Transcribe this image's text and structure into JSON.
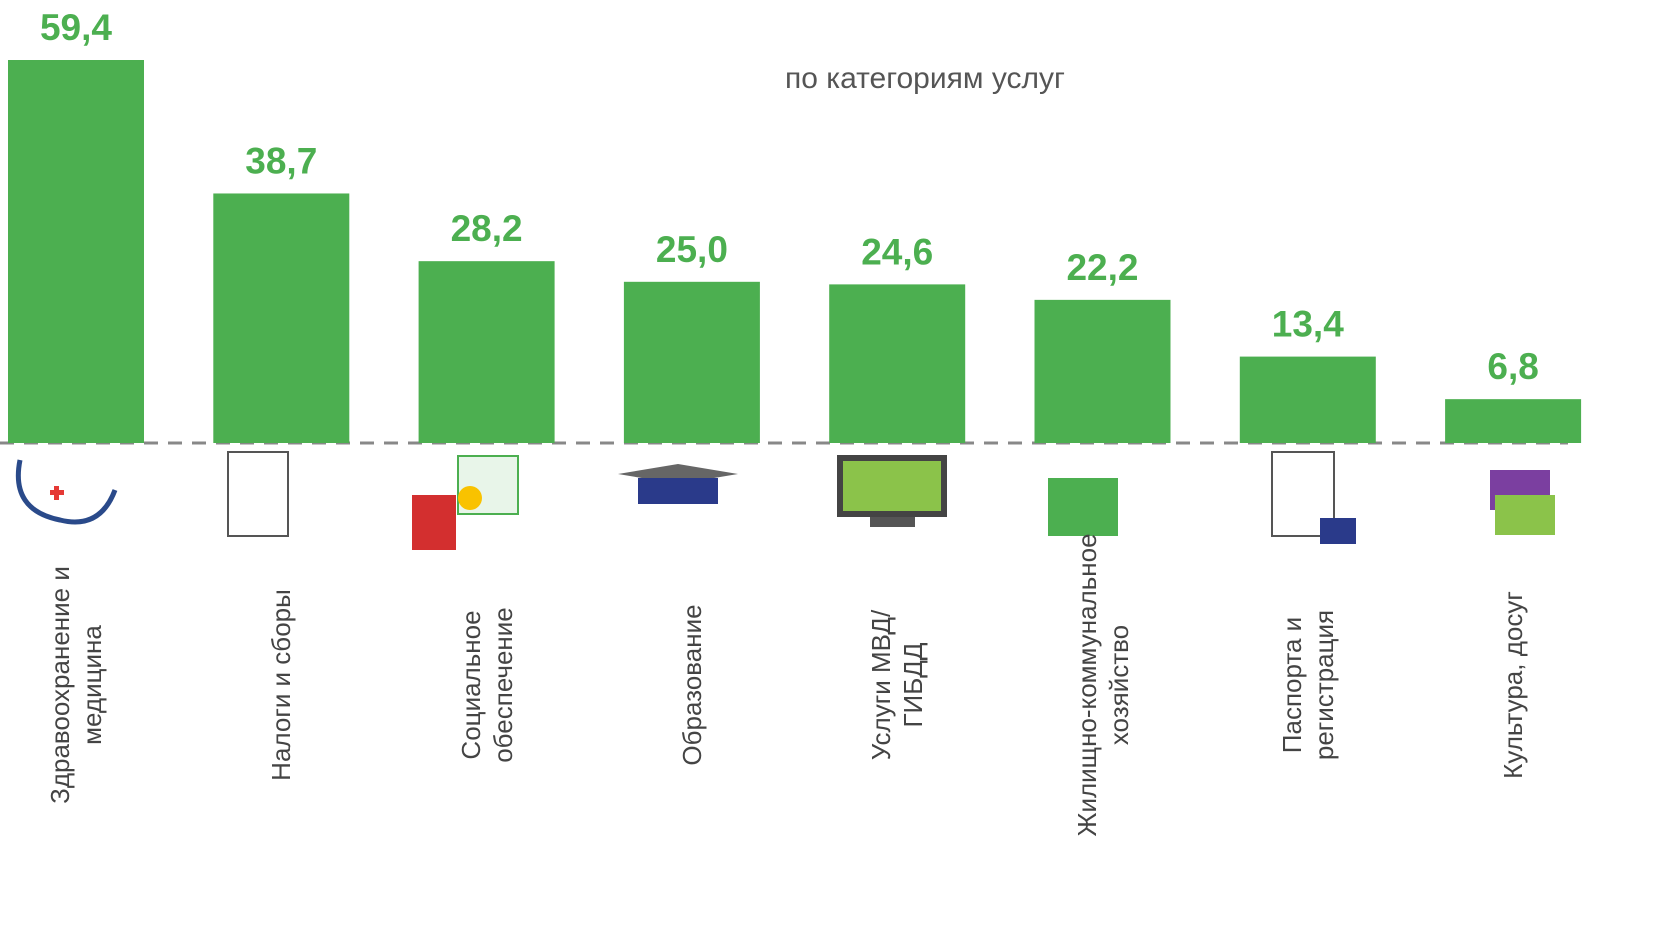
{
  "chart_data": {
    "type": "bar",
    "subtitle": "по категориям услуг",
    "categories": [
      "Здравоохранение и медицина",
      "Налоги и сборы",
      "Социальное обеспечение",
      "Образование",
      "Услуги МВД/ГИБДД",
      "Жилищно-коммунальное хозяйство",
      "Паспорта и регистрация",
      "Культура, досуг"
    ],
    "values": [
      59.4,
      38.7,
      28.2,
      25.0,
      24.6,
      22.2,
      13.4,
      6.8
    ],
    "value_labels": [
      "59,4",
      "38,7",
      "28,2",
      "25,0",
      "24,6",
      "22,2",
      "13,4",
      "6,8"
    ],
    "color": "#4caf50"
  }
}
